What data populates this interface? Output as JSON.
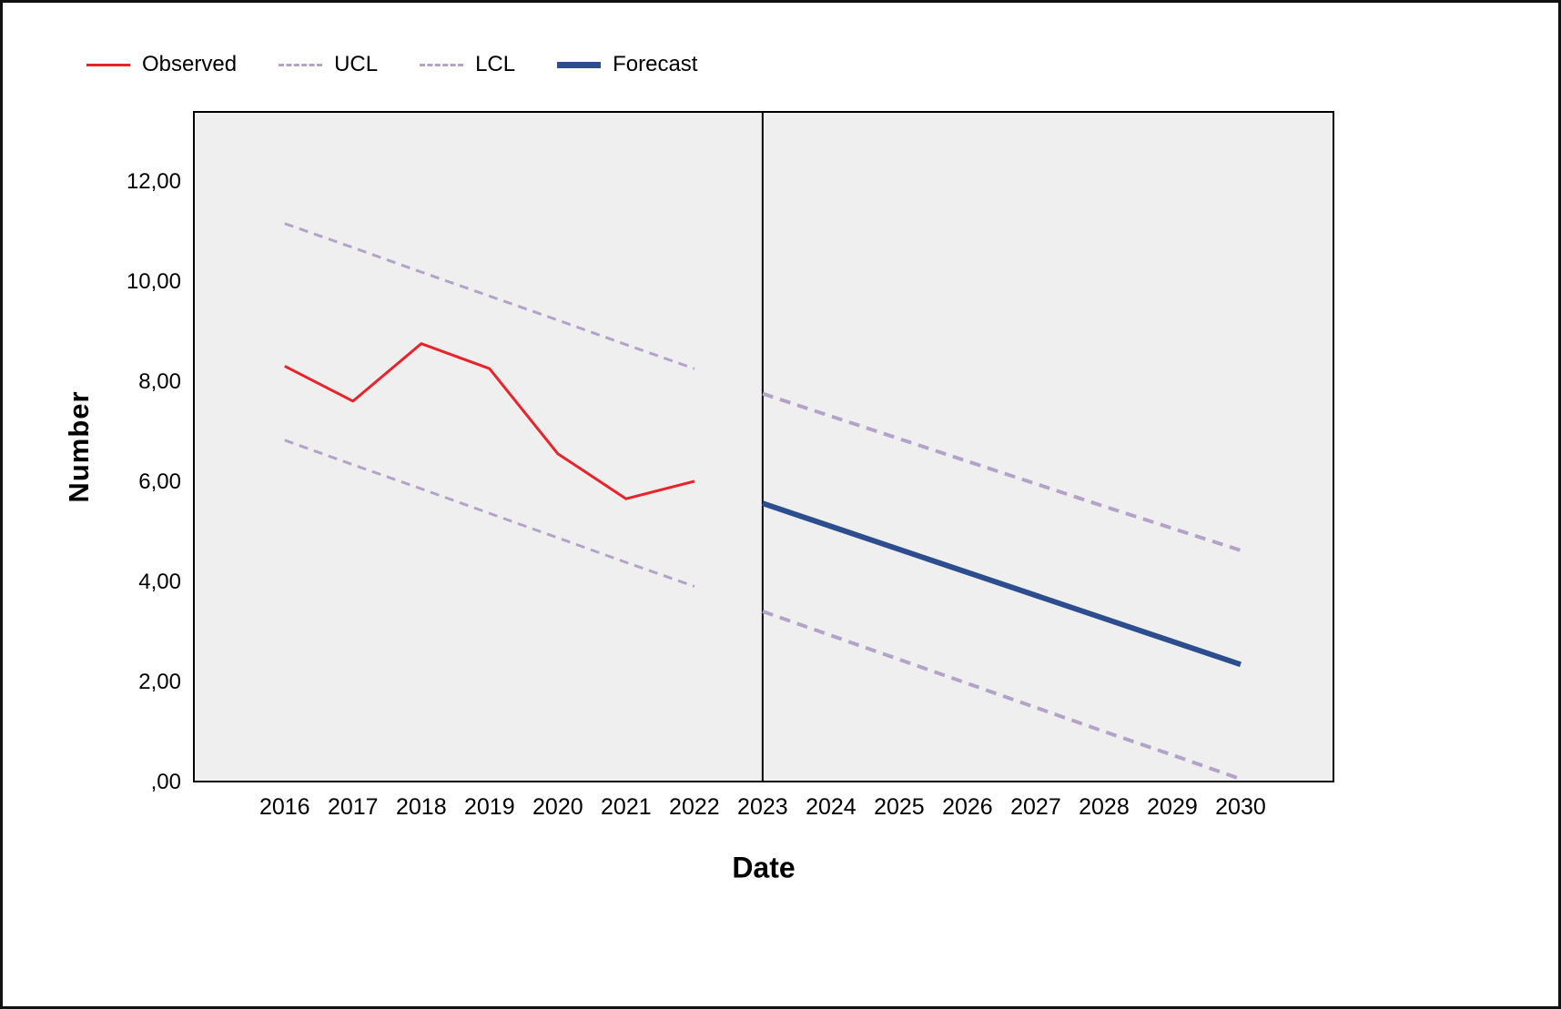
{
  "figure": {
    "legend": [
      {
        "label": "Observed",
        "style": "solid",
        "color": "#e8232a",
        "thickness": 3
      },
      {
        "label": "UCL",
        "style": "dashed",
        "color": "#b4a3c8",
        "thickness": 3
      },
      {
        "label": "LCL",
        "style": "dashed",
        "color": "#b4a3c8",
        "thickness": 3
      },
      {
        "label": "Forecast",
        "style": "solid",
        "color": "#2c4d8e",
        "thickness": 7
      }
    ]
  },
  "chart_data": {
    "type": "line",
    "title": "",
    "xlabel": "Date",
    "ylabel": "Number",
    "plot_background": "#f0eff0",
    "axis_color": "#000000",
    "xlim": [
      2014.67,
      2031.36
    ],
    "ylim": [
      0,
      13.38
    ],
    "forecast_boundary_x": 2023,
    "x_ticks": [
      "2016",
      "2017",
      "2018",
      "2019",
      "2020",
      "2021",
      "2022",
      "2023",
      "2024",
      "2025",
      "2026",
      "2027",
      "2028",
      "2029",
      "2030"
    ],
    "y_ticks": [
      {
        "value": 0,
        "label": ",00"
      },
      {
        "value": 2,
        "label": "2,00"
      },
      {
        "value": 4,
        "label": "4,00"
      },
      {
        "value": 6,
        "label": "6,00"
      },
      {
        "value": 8,
        "label": "8,00"
      },
      {
        "value": 10,
        "label": "10,00"
      },
      {
        "value": 12,
        "label": "12,00"
      }
    ],
    "series": [
      {
        "id": "observed",
        "name": "Observed",
        "color": "#e8232a",
        "width": 3,
        "dash": "",
        "x": [
          2016,
          2017,
          2018,
          2019,
          2020,
          2021,
          2022
        ],
        "values": [
          8.3,
          7.6,
          8.75,
          8.25,
          6.55,
          5.65,
          6.0
        ]
      },
      {
        "id": "ucl-fit",
        "name": "UCL (fit)",
        "color": "#b4a3c8",
        "width": 3,
        "dash": "10 7",
        "x": [
          2016,
          2017,
          2018,
          2019,
          2020,
          2021,
          2022
        ],
        "values": [
          11.15,
          10.67,
          10.18,
          9.7,
          9.22,
          8.73,
          8.25
        ]
      },
      {
        "id": "lcl-fit",
        "name": "LCL (fit)",
        "color": "#b4a3c8",
        "width": 3,
        "dash": "10 7",
        "x": [
          2016,
          2017,
          2018,
          2019,
          2020,
          2021,
          2022
        ],
        "values": [
          6.82,
          6.33,
          5.85,
          5.36,
          4.87,
          4.38,
          3.9
        ]
      },
      {
        "id": "ucl-forecast",
        "name": "UCL (forecast)",
        "color": "#b4a3c8",
        "width": 4,
        "dash": "12 8",
        "x": [
          2023,
          2024,
          2025,
          2026,
          2027,
          2028,
          2029,
          2030
        ],
        "values": [
          7.75,
          7.3,
          6.85,
          6.4,
          5.95,
          5.5,
          5.06,
          4.62
        ]
      },
      {
        "id": "lcl-forecast",
        "name": "LCL (forecast)",
        "color": "#b4a3c8",
        "width": 4,
        "dash": "12 8",
        "x": [
          2023,
          2024,
          2025,
          2026,
          2027,
          2028,
          2029,
          2030
        ],
        "values": [
          3.4,
          2.92,
          2.44,
          1.96,
          1.48,
          1.0,
          0.53,
          0.05
        ]
      },
      {
        "id": "forecast",
        "name": "Forecast",
        "color": "#2c4d8e",
        "width": 6,
        "dash": "",
        "x": [
          2023,
          2024,
          2025,
          2026,
          2027,
          2028,
          2029,
          2030
        ],
        "values": [
          5.56,
          5.1,
          4.64,
          4.18,
          3.72,
          3.26,
          2.8,
          2.34
        ]
      }
    ]
  }
}
